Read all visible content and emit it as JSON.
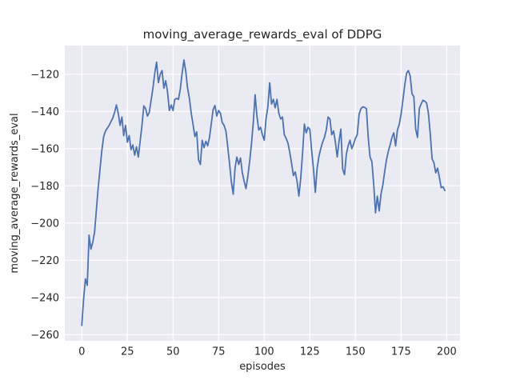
{
  "figure": {
    "background": "#ffffff"
  },
  "chart_data": {
    "type": "line",
    "title": "moving_average_rewards_eval of DDPG",
    "xlabel": "episodes",
    "ylabel": "moving_average_rewards_eval",
    "x_ticks": [
      0,
      25,
      50,
      75,
      100,
      125,
      150,
      175,
      200
    ],
    "y_ticks": [
      -260,
      -240,
      -220,
      -200,
      -180,
      -160,
      -140,
      -120
    ],
    "xlim": [
      -9.3,
      207.3
    ],
    "ylim": [
      -263.3,
      -104.6
    ],
    "grid": true,
    "legend_position": "none",
    "style": {
      "axes_background": "#eaeaf2",
      "grid_color": "#ffffff",
      "line_color": "#4c72b0",
      "text_color": "#262626"
    },
    "series": [
      {
        "name": "moving_average_rewards_eval",
        "x_start": 0,
        "x_step": 1,
        "values": [
          -255,
          -241,
          -230,
          -233.5,
          -206.5,
          -214,
          -210.5,
          -205,
          -193,
          -181,
          -171,
          -161,
          -153.5,
          -150.5,
          -149,
          -147.5,
          -145.5,
          -143.5,
          -140.5,
          -136.5,
          -141,
          -147.5,
          -143,
          -153,
          -147.5,
          -156.5,
          -153,
          -160.5,
          -158,
          -163.5,
          -159,
          -164.5,
          -156,
          -147.5,
          -137,
          -138.5,
          -142.5,
          -140.5,
          -134,
          -127.5,
          -119.5,
          -113.5,
          -124.5,
          -120,
          -118,
          -127.5,
          -123.5,
          -129.5,
          -139.5,
          -136.5,
          -139.5,
          -133.5,
          -133,
          -133.5,
          -128,
          -119.5,
          -112.3,
          -118.5,
          -127.5,
          -133,
          -141,
          -147,
          -153.5,
          -151,
          -166,
          -168.5,
          -155.5,
          -159.5,
          -156,
          -158.5,
          -154,
          -146.5,
          -139,
          -136.8,
          -142.5,
          -139.5,
          -141,
          -146,
          -147.5,
          -150.5,
          -159,
          -168,
          -178,
          -184.5,
          -170.5,
          -164.5,
          -168.5,
          -165,
          -173,
          -177.5,
          -181.5,
          -175,
          -167,
          -157.5,
          -146,
          -131,
          -142.5,
          -150,
          -148.5,
          -152.5,
          -155.5,
          -144,
          -137.5,
          -124.6,
          -136,
          -133.5,
          -138,
          -133.5,
          -141,
          -144,
          -143,
          -152.5,
          -154.5,
          -157,
          -162,
          -168,
          -174.5,
          -172.5,
          -177.5,
          -185.5,
          -176,
          -162.5,
          -146.8,
          -151.5,
          -148.5,
          -149.7,
          -161,
          -171,
          -183.5,
          -170.5,
          -164,
          -160,
          -156.5,
          -154,
          -150,
          -143,
          -144,
          -152.5,
          -150.5,
          -156.5,
          -164.5,
          -156,
          -149.5,
          -171,
          -174,
          -163,
          -158.5,
          -155.5,
          -160,
          -157.5,
          -154.5,
          -152.5,
          -141.5,
          -138.5,
          -137.5,
          -137.8,
          -138.5,
          -154,
          -164.5,
          -167,
          -179,
          -194.5,
          -185.5,
          -193.5,
          -184.5,
          -179.5,
          -172.5,
          -166,
          -161.5,
          -158,
          -154,
          -151.5,
          -158.5,
          -150,
          -147,
          -141.5,
          -134,
          -126,
          -119.5,
          -118,
          -121,
          -130.5,
          -132,
          -149.5,
          -154,
          -138.5,
          -136,
          -134,
          -134.5,
          -135.5,
          -141,
          -152,
          -165.5,
          -167.5,
          -173,
          -170.5,
          -175.5,
          -181,
          -180.5,
          -182.5
        ]
      }
    ]
  }
}
